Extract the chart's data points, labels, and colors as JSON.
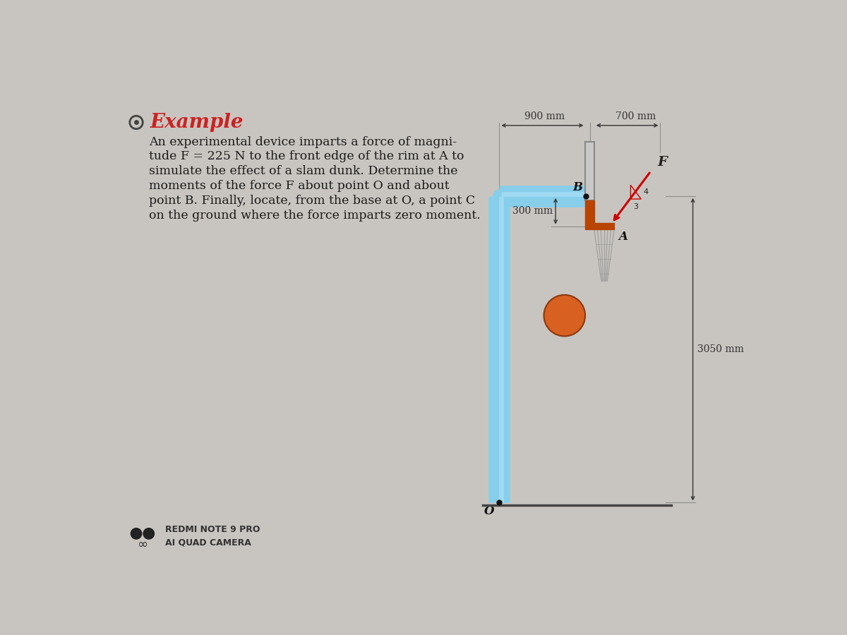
{
  "bg_color": "#c8c5c0",
  "title": "Example",
  "title_color": "#cc2222",
  "title_fontsize": 20,
  "body_lines": [
    "An experimental device imparts a force of magni-",
    "tude F = 225 N to the front edge of the rim at A to",
    "simulate the effect of a slam dunk. Determine the",
    "moments of the force F about point O and about",
    "point B. Finally, locate, from the base at O, a point C",
    "on the ground where the force imparts zero moment."
  ],
  "body_fontsize": 12.5,
  "body_color": "#1a1a1a",
  "dim_900": "900 mm",
  "dim_700": "700 mm",
  "dim_300": "300 mm",
  "dim_3050": "3050 mm",
  "label_F": "F",
  "label_B": "B",
  "label_A": "A",
  "label_O": "O",
  "pole_color_outer": "#87CEEB",
  "pole_color_inner": "#5ab5d8",
  "backboard_color": "#c8c8c8",
  "backboard_edge": "#888888",
  "rim_color": "#b84400",
  "net_color": "#999999",
  "force_color": "#cc0000",
  "ball_color": "#d86020",
  "ground_color": "#444444",
  "dim_color": "#333333",
  "footer_text1": "REDMI NOTE 9 PRO",
  "footer_text2": "AI QUAD CAMERA"
}
